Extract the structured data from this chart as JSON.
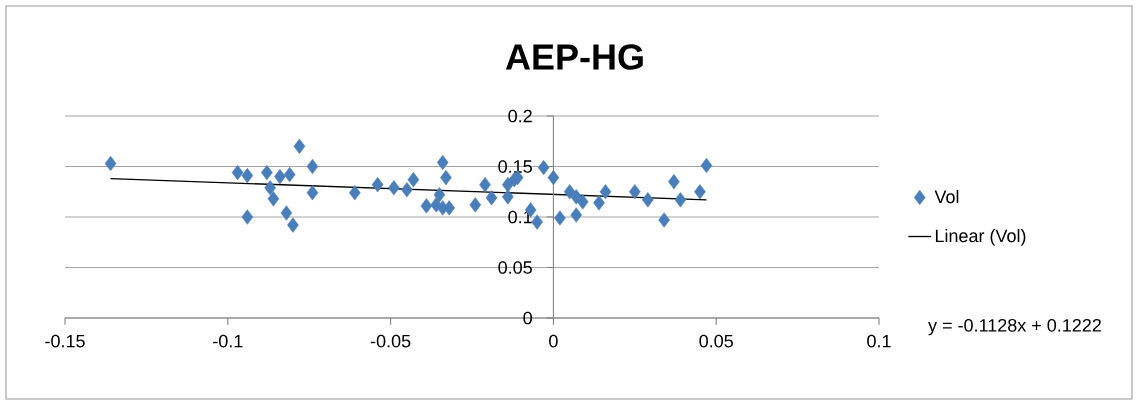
{
  "chart_data": {
    "type": "scatter",
    "title": "AEP-HG",
    "x": [
      -0.136,
      -0.097,
      -0.094,
      -0.094,
      -0.088,
      -0.087,
      -0.086,
      -0.084,
      -0.081,
      -0.082,
      -0.08,
      -0.078,
      -0.074,
      -0.074,
      -0.061,
      -0.054,
      -0.049,
      -0.045,
      -0.043,
      -0.039,
      -0.036,
      -0.034,
      -0.033,
      -0.034,
      -0.032,
      -0.035,
      -0.024,
      -0.021,
      -0.019,
      -0.014,
      -0.014,
      -0.011,
      -0.012,
      -0.007,
      -0.005,
      -0.003,
      0.0,
      0.002,
      0.005,
      0.007,
      0.007,
      0.009,
      0.014,
      0.016,
      0.025,
      0.029,
      0.037,
      0.039,
      0.034,
      0.045,
      0.047
    ],
    "series": [
      {
        "name": "Vol",
        "color": "#4a7ebb",
        "marker": "diamond",
        "values": [
          0.153,
          0.144,
          0.141,
          0.1,
          0.144,
          0.129,
          0.118,
          0.14,
          0.142,
          0.104,
          0.092,
          0.17,
          0.15,
          0.124,
          0.124,
          0.132,
          0.129,
          0.127,
          0.137,
          0.111,
          0.112,
          0.154,
          0.139,
          0.109,
          0.109,
          0.122,
          0.112,
          0.132,
          0.119,
          0.12,
          0.132,
          0.139,
          0.137,
          0.107,
          0.095,
          0.149,
          0.139,
          0.099,
          0.125,
          0.12,
          0.102,
          0.115,
          0.114,
          0.125,
          0.125,
          0.117,
          0.135,
          0.117,
          0.097,
          0.125,
          0.151
        ]
      },
      {
        "name": "Linear (Vol)",
        "type": "line",
        "color": "#000000",
        "x": [
          -0.136,
          0.047
        ],
        "values": [
          0.138,
          0.117
        ],
        "marker": "none"
      }
    ],
    "xlim": [
      -0.15,
      0.1
    ],
    "xticks": [
      -0.15,
      -0.1,
      -0.05,
      0,
      0.05,
      0.1
    ],
    "ylim": [
      0,
      0.2
    ],
    "yticks": [
      0,
      0.05,
      0.1,
      0.15,
      0.2
    ],
    "grid": "y",
    "legend": "right",
    "annotations": [
      "y = -0.1128x + 0.1222"
    ]
  }
}
